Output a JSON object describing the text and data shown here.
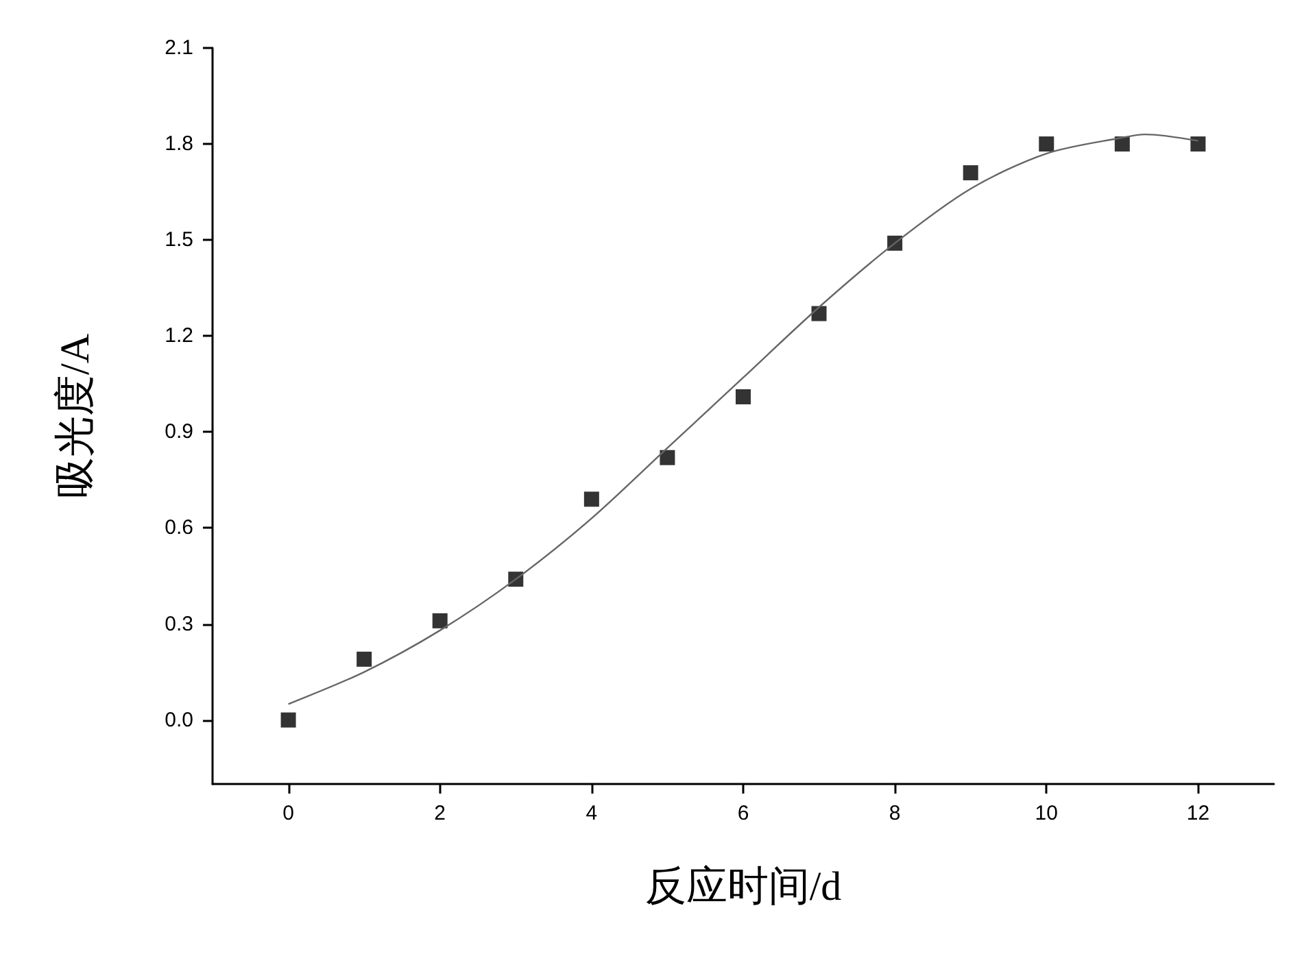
{
  "chart_data": {
    "type": "scatter",
    "xlabel": "反应时间/d",
    "ylabel": "吸光度/A",
    "xlim": [
      -1,
      13
    ],
    "xticks": [
      0,
      2,
      4,
      6,
      8,
      10,
      12
    ],
    "ylim": [
      -0.2,
      2.1
    ],
    "yticks": [
      {
        "value": 0,
        "label": "0.0"
      },
      0.3,
      0.6,
      0.9,
      1.2,
      1.5,
      1.8,
      2.1
    ],
    "grid": false,
    "marker": "square",
    "series": [
      {
        "color": "#000000",
        "x": [
          0,
          1,
          2,
          3,
          4,
          5,
          6,
          7,
          8,
          9,
          10,
          11,
          12
        ],
        "values": [
          0.0,
          0.19,
          0.31,
          0.44,
          0.69,
          0.82,
          1.01,
          1.27,
          1.49,
          1.71,
          1.8,
          1.8,
          1.8
        ]
      },
      {
        "type": "line",
        "color": "#666666",
        "marker": "none",
        "line_style": "solid",
        "x": [
          0,
          1,
          2,
          3,
          4,
          5,
          6,
          7,
          8,
          9,
          10,
          11,
          11.3,
          12
        ],
        "values": [
          0.05,
          0.15,
          0.28,
          0.44,
          0.63,
          0.85,
          1.07,
          1.29,
          1.49,
          1.66,
          1.77,
          1.82,
          1.83,
          1.81
        ]
      }
    ]
  }
}
